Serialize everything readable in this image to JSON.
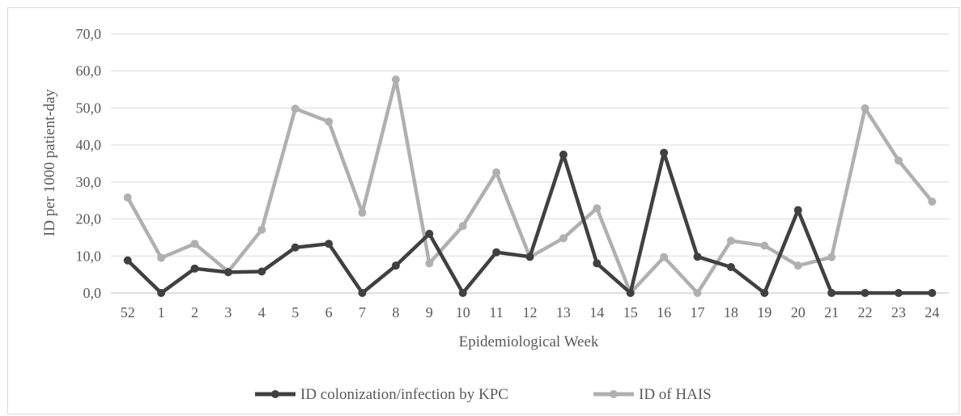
{
  "chart_data": {
    "type": "line",
    "title": "",
    "xlabel": "Epidemiological Week",
    "ylabel": "ID per 1000 patient-day",
    "ylim": [
      0,
      70
    ],
    "yticks": [
      "0,0",
      "10,0",
      "20,0",
      "30,0",
      "40,0",
      "50,0",
      "60,0",
      "70,0"
    ],
    "grid": true,
    "legend_position": "bottom",
    "categories": [
      "52",
      "1",
      "2",
      "3",
      "4",
      "5",
      "6",
      "7",
      "8",
      "9",
      "10",
      "11",
      "12",
      "13",
      "14",
      "15",
      "16",
      "17",
      "18",
      "19",
      "20",
      "21",
      "22",
      "23",
      "24"
    ],
    "series": [
      {
        "name": "ID colonization/infection by KPC",
        "color": "#404040",
        "values": [
          8.8,
          0,
          6.6,
          5.6,
          5.8,
          12.3,
          13.3,
          0,
          7.4,
          16.0,
          0,
          11.0,
          9.8,
          37.4,
          8.0,
          0,
          37.9,
          9.8,
          7.0,
          0,
          22.4,
          0,
          0,
          0,
          0
        ]
      },
      {
        "name": "ID of HAIS",
        "color": "#b0b0b0",
        "values": [
          25.8,
          9.5,
          13.3,
          5.8,
          17.1,
          49.8,
          46.3,
          21.7,
          57.7,
          8.0,
          18.1,
          32.6,
          9.7,
          14.8,
          22.9,
          0,
          9.7,
          0,
          14.1,
          12.8,
          7.4,
          9.7,
          49.9,
          35.8,
          24.7
        ]
      }
    ]
  }
}
